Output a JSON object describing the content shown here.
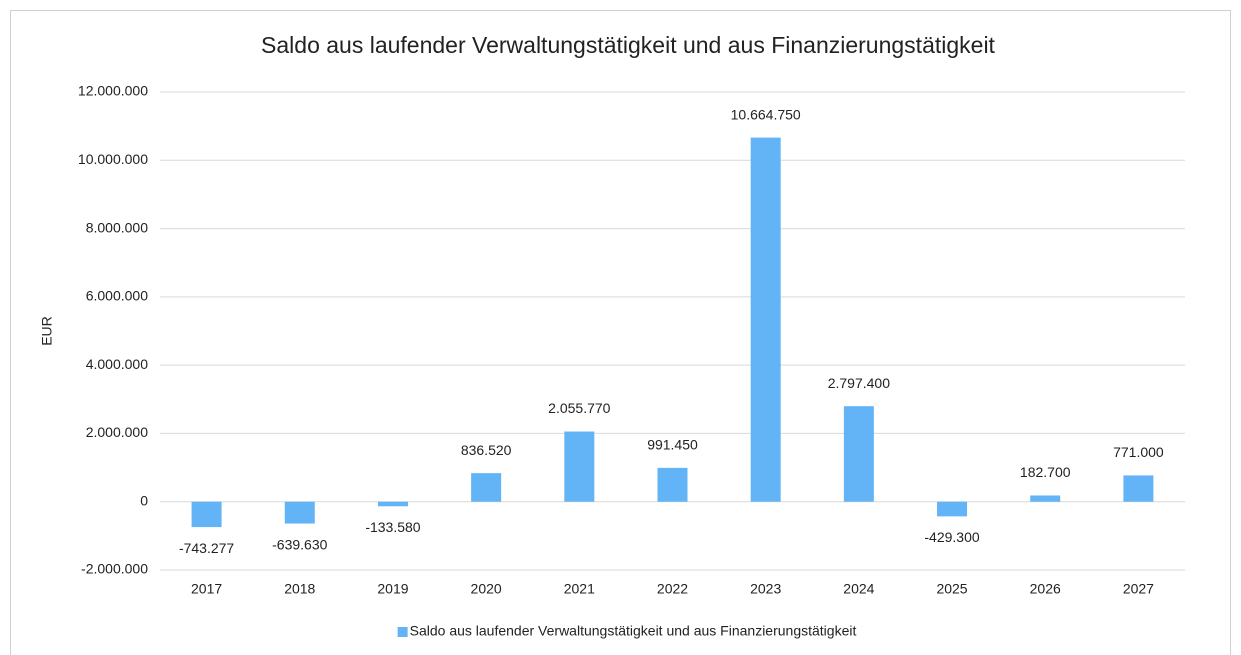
{
  "chart_data": {
    "type": "bar",
    "title": "Saldo aus laufender Verwaltungstätigkeit und aus Finanzierungstätigkeit",
    "y_label": "EUR",
    "categories": [
      "2017",
      "2018",
      "2019",
      "2020",
      "2021",
      "2022",
      "2023",
      "2024",
      "2025",
      "2026",
      "2027"
    ],
    "series": [
      {
        "name": "Saldo aus laufender Verwaltungstätigkeit und aus Finanzierungstätigkeit",
        "color": "#63b4f6",
        "values": [
          -743277,
          -639630,
          -133580,
          836520,
          2055770,
          991450,
          10664750,
          2797400,
          -429300,
          182700,
          771000
        ],
        "value_labels": [
          "-743.277",
          "-639.630",
          "-133.580",
          "836.520",
          "2.055.770",
          "991.450",
          "10.664.750",
          "2.797.400",
          "-429.300",
          "182.700",
          "771.000"
        ]
      }
    ],
    "ylim": [
      -2000000,
      12000000
    ],
    "yticks": [
      {
        "value": -2000000,
        "label": "-2.000.000"
      },
      0,
      {
        "value": 2000000,
        "label": "2.000.000"
      },
      {
        "value": 4000000,
        "label": "4.000.000"
      },
      {
        "value": 6000000,
        "label": "6.000.000"
      },
      {
        "value": 8000000,
        "label": "8.000.000"
      },
      {
        "value": 10000000,
        "label": "10.000.000"
      },
      {
        "value": 12000000,
        "label": "12.000.000"
      }
    ],
    "grid": true,
    "legend": "bottom"
  }
}
